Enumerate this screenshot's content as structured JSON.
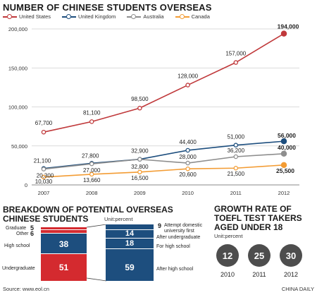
{
  "title": "NUMBER OF CHINESE STUDENTS OVERSEAS",
  "colors": {
    "us": "#c0393b",
    "uk": "#1d4e7e",
    "au": "#8e8e8e",
    "ca": "#f39c34",
    "red": "#d42a2f",
    "navy": "#1d4e7e",
    "grey": "#4d4d4d"
  },
  "chart_data": [
    {
      "type": "line",
      "title": "NUMBER OF CHINESE STUDENTS OVERSEAS",
      "x": [
        "2007",
        "2008",
        "2009",
        "2010",
        "2011",
        "2012"
      ],
      "ylim": [
        0,
        200000
      ],
      "yticks": [
        "0",
        "50,000",
        "100,000",
        "150,000",
        "200,000"
      ],
      "ytick_values": [
        0,
        50000,
        100000,
        150000,
        200000
      ],
      "legend": "top",
      "grid": true,
      "series": [
        {
          "name": "United States",
          "values": [
            67700,
            81100,
            98500,
            128000,
            157000,
            194000
          ],
          "labels": [
            "67,700",
            "81,100",
            "98,500",
            "128,000",
            "157,000",
            "194,000"
          ]
        },
        {
          "name": "United Kingdom",
          "values": [
            21100,
            27800,
            32900,
            44400,
            51000,
            56000
          ],
          "labels": [
            "21,100",
            "27,800",
            "32,900",
            "44,400",
            "51,000",
            "56,000"
          ]
        },
        {
          "name": "Australia",
          "values": [
            20300,
            27000,
            32800,
            28000,
            36200,
            40000
          ],
          "labels": [
            "20,300",
            "27,000",
            "32,800",
            "28,000",
            "36,200",
            "40,000"
          ]
        },
        {
          "name": "Canada",
          "values": [
            10030,
            13660,
            16500,
            20600,
            21500,
            25500
          ],
          "labels": [
            "10,030",
            "13,660",
            "16,500",
            "20,600",
            "21,500",
            "25,500"
          ]
        }
      ]
    },
    {
      "type": "bar",
      "title": "BREAKDOWN OF POTENTIAL OVERSEAS CHINESE STUDENTS",
      "unit": "Unit:percent",
      "stacks": [
        {
          "segments": [
            {
              "label": "Undergraduate",
              "value": 51
            },
            {
              "label": "High school",
              "value": 38
            },
            {
              "label": "Other",
              "value": 6
            },
            {
              "label": "Graduate",
              "value": 5
            }
          ]
        },
        {
          "segments": [
            {
              "label": "After high school",
              "value": 59
            },
            {
              "label": "For high school",
              "value": 18
            },
            {
              "label": "After undergraduate",
              "value": 14
            },
            {
              "label": "Attempt domestic university first",
              "value": 9
            }
          ]
        }
      ]
    },
    {
      "type": "bar",
      "title": "GROWTH RATE OF TOEFL TEST TAKERS AGED UNDER 18",
      "unit": "Unit:percent",
      "categories": [
        "2010",
        "2011",
        "2012"
      ],
      "values": [
        12,
        25,
        30
      ]
    }
  ],
  "breakdown": {
    "title_line1": "BREAKDOWN OF POTENTIAL OVERSEAS",
    "title_line2": "CHINESE STUDENTS",
    "unit": "Unit:percent",
    "left": {
      "graduate_label": "Graduate",
      "graduate_value": "5",
      "other_label": "Other",
      "other_value": "6",
      "high_school_label": "High school",
      "high_school_value": "38",
      "undergrad_label": "Undergraduate",
      "undergrad_value": "51"
    },
    "right": {
      "attempt_value": "9",
      "attempt_label_line1": "Attempt domestic",
      "attempt_label_line2": "university first",
      "after_ug_value": "14",
      "after_ug_label": "After undergraduate",
      "for_hs_value": "18",
      "for_hs_label": "For high school",
      "after_hs_value": "59",
      "after_hs_label": "After high school"
    }
  },
  "toefl": {
    "title_line1": "GROWTH RATE OF",
    "title_line2": "TOEFL TEST TAKERS",
    "title_line3": "AGED UNDER 18",
    "unit": "Unit:percent",
    "items": [
      {
        "value": "12",
        "year": "2010"
      },
      {
        "value": "25",
        "year": "2011"
      },
      {
        "value": "30",
        "year": "2012"
      }
    ]
  },
  "source": "Source: www.eol.cn",
  "credit": "CHINA DAILY"
}
